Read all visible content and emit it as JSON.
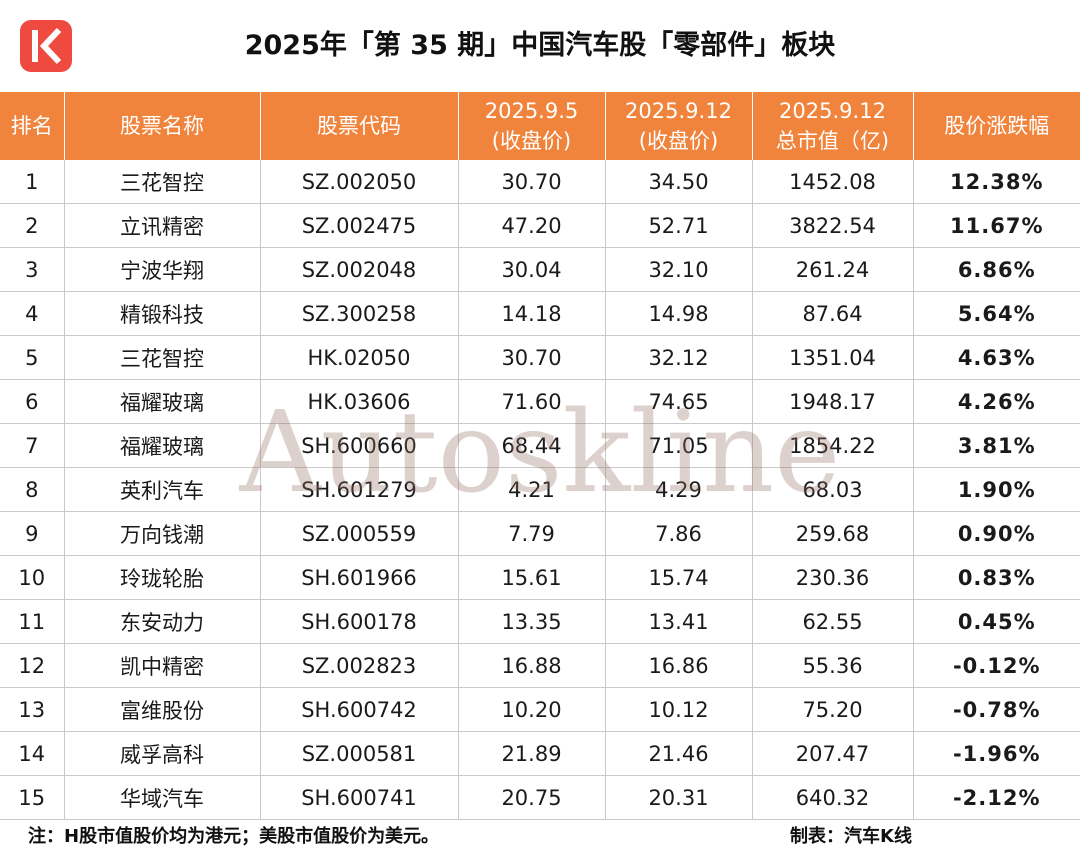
{
  "header": {
    "title": "2025年「第 35 期」中国汽车股「零部件」板块",
    "logo_letter": "K"
  },
  "table": {
    "columns": [
      {
        "line1": "排名",
        "line2": ""
      },
      {
        "line1": "股票名称",
        "line2": ""
      },
      {
        "line1": "股票代码",
        "line2": ""
      },
      {
        "line1": "2025.9.5",
        "line2": "(收盘价)"
      },
      {
        "line1": "2025.9.12",
        "line2": "(收盘价)"
      },
      {
        "line1": "2025.9.12",
        "line2": "总市值（亿)"
      },
      {
        "line1": "股价涨跌幅",
        "line2": ""
      }
    ],
    "rows": [
      {
        "rank": "1",
        "name": "三花智控",
        "code": "SZ.002050",
        "close_prev": "30.70",
        "close_curr": "34.50",
        "market_cap": "1452.08",
        "change": "12.38%",
        "direction": "up"
      },
      {
        "rank": "2",
        "name": "立讯精密",
        "code": "SZ.002475",
        "close_prev": "47.20",
        "close_curr": "52.71",
        "market_cap": "3822.54",
        "change": "11.67%",
        "direction": "up"
      },
      {
        "rank": "3",
        "name": "宁波华翔",
        "code": "SZ.002048",
        "close_prev": "30.04",
        "close_curr": "32.10",
        "market_cap": "261.24",
        "change": "6.86%",
        "direction": "up"
      },
      {
        "rank": "4",
        "name": "精锻科技",
        "code": "SZ.300258",
        "close_prev": "14.18",
        "close_curr": "14.98",
        "market_cap": "87.64",
        "change": "5.64%",
        "direction": "up"
      },
      {
        "rank": "5",
        "name": "三花智控",
        "code": "HK.02050",
        "close_prev": "30.70",
        "close_curr": "32.12",
        "market_cap": "1351.04",
        "change": "4.63%",
        "direction": "up"
      },
      {
        "rank": "6",
        "name": "福耀玻璃",
        "code": "HK.03606",
        "close_prev": "71.60",
        "close_curr": "74.65",
        "market_cap": "1948.17",
        "change": "4.26%",
        "direction": "up"
      },
      {
        "rank": "7",
        "name": "福耀玻璃",
        "code": "SH.600660",
        "close_prev": "68.44",
        "close_curr": "71.05",
        "market_cap": "1854.22",
        "change": "3.81%",
        "direction": "up"
      },
      {
        "rank": "8",
        "name": "英利汽车",
        "code": "SH.601279",
        "close_prev": "4.21",
        "close_curr": "4.29",
        "market_cap": "68.03",
        "change": "1.90%",
        "direction": "up"
      },
      {
        "rank": "9",
        "name": "万向钱潮",
        "code": "SZ.000559",
        "close_prev": "7.79",
        "close_curr": "7.86",
        "market_cap": "259.68",
        "change": "0.90%",
        "direction": "up"
      },
      {
        "rank": "10",
        "name": "玲珑轮胎",
        "code": "SH.601966",
        "close_prev": "15.61",
        "close_curr": "15.74",
        "market_cap": "230.36",
        "change": "0.83%",
        "direction": "up"
      },
      {
        "rank": "11",
        "name": "东安动力",
        "code": "SH.600178",
        "close_prev": "13.35",
        "close_curr": "13.41",
        "market_cap": "62.55",
        "change": "0.45%",
        "direction": "up"
      },
      {
        "rank": "12",
        "name": "凯中精密",
        "code": "SZ.002823",
        "close_prev": "16.88",
        "close_curr": "16.86",
        "market_cap": "55.36",
        "change": "-0.12%",
        "direction": "down"
      },
      {
        "rank": "13",
        "name": "富维股份",
        "code": "SH.600742",
        "close_prev": "10.20",
        "close_curr": "10.12",
        "market_cap": "75.20",
        "change": "-0.78%",
        "direction": "down"
      },
      {
        "rank": "14",
        "name": "威孚高科",
        "code": "SZ.000581",
        "close_prev": "21.89",
        "close_curr": "21.46",
        "market_cap": "207.47",
        "change": "-1.96%",
        "direction": "down"
      },
      {
        "rank": "15",
        "name": "华域汽车",
        "code": "SH.600741",
        "close_prev": "20.75",
        "close_curr": "20.31",
        "market_cap": "640.32",
        "change": "-2.12%",
        "direction": "down"
      }
    ]
  },
  "watermark": "Autoskline",
  "footer": {
    "note": "注：H股市值股价均为港元；美股市值股价为美元。",
    "credit": "制表：汽车K线"
  },
  "colors": {
    "header_bg": "#f0843c",
    "logo_bg": "#ee4a3f",
    "up": "#e0141c",
    "down": "#17a33c"
  }
}
